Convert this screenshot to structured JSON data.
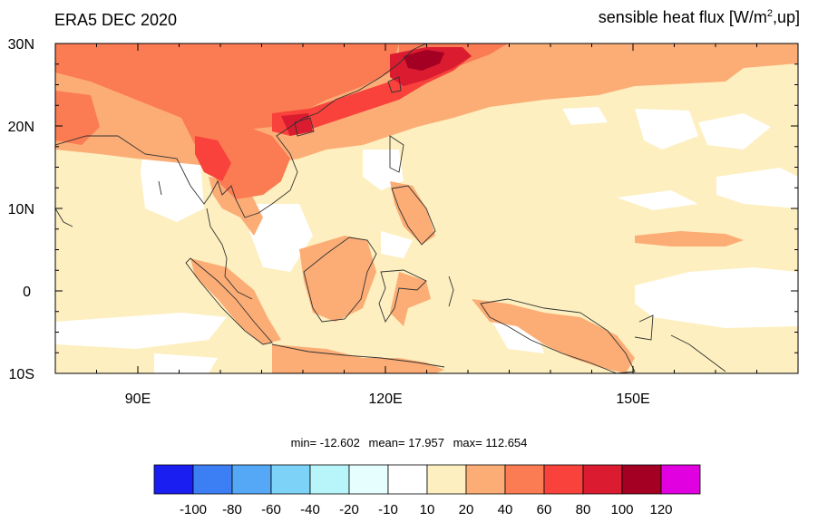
{
  "header": {
    "left_title": "ERA5 DEC 2020",
    "right_title_prefix": "sensible heat flux [W/m",
    "right_title_sup": "2",
    "right_title_suffix": ",up]"
  },
  "map": {
    "lon_range": [
      80,
      170
    ],
    "lat_range": [
      -10,
      30
    ],
    "lon_ticks": [
      {
        "value": 90,
        "label": "90E"
      },
      {
        "value": 120,
        "label": "120E"
      },
      {
        "value": 150,
        "label": "150E"
      }
    ],
    "lat_ticks": [
      {
        "value": 30,
        "label": "30N"
      },
      {
        "value": 20,
        "label": "20N"
      },
      {
        "value": 10,
        "label": "10N"
      },
      {
        "value": 0,
        "label": "0"
      },
      {
        "value": -10,
        "label": "10S"
      }
    ]
  },
  "stats": {
    "min_text": "min= -12.602",
    "mean_text": "mean=  17.957",
    "max_text": "max= 112.654"
  },
  "colorbar": {
    "colors": [
      "#1a1ef0",
      "#3c7ff5",
      "#55a8f5",
      "#7dd2f8",
      "#b8f5fb",
      "#e6fffe",
      "#ffffff",
      "#fdefbf",
      "#fcad76",
      "#fb7b53",
      "#f8423b",
      "#da1b30",
      "#a40024",
      "#e000e0"
    ],
    "labels": [
      "-100",
      "-80",
      "-60",
      "-40",
      "-20",
      "-10",
      "10",
      "20",
      "40",
      "60",
      "80",
      "100",
      "120"
    ]
  }
}
